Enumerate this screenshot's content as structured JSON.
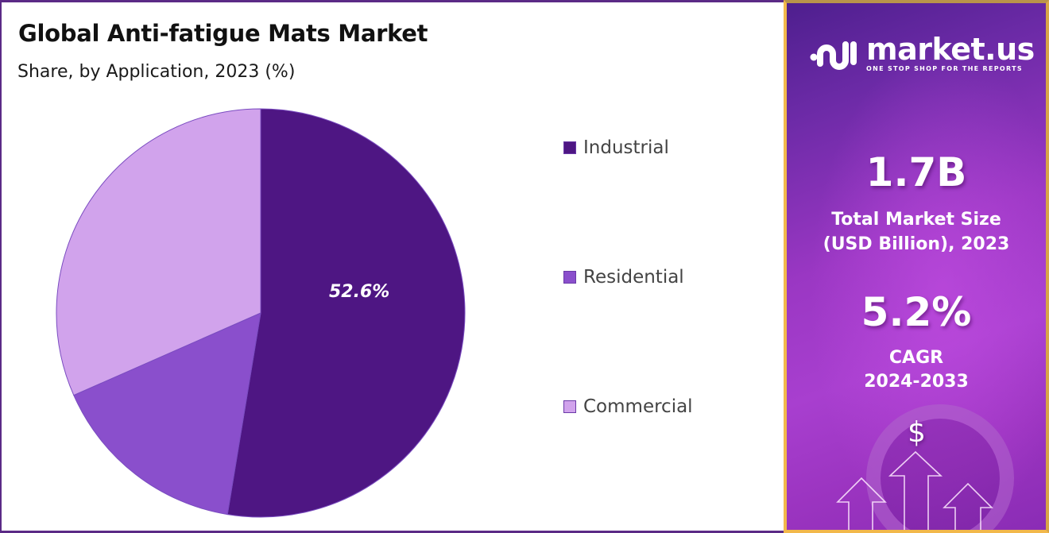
{
  "header": {
    "title": "Global Anti-fatigue Mats Market",
    "subtitle": "Share, by Application, 2023 (%)"
  },
  "legend": {
    "items": [
      {
        "label": "Industrial",
        "color": "#4e1683"
      },
      {
        "label": "Residential",
        "color": "#8a4fcc"
      },
      {
        "label": "Commercial",
        "color": "#d1a3ec"
      }
    ]
  },
  "pie_label": "52.6%",
  "sidebar": {
    "brand": "market.us",
    "tagline": "ONE STOP SHOP FOR THE REPORTS",
    "market_size_value": "1.7B",
    "market_size_label_line1": "Total Market Size",
    "market_size_label_line2": "(USD Billion), 2023",
    "cagr_value": "5.2%",
    "cagr_label_line1": "CAGR",
    "cagr_label_line2": "2024-2033",
    "dollar_symbol": "$",
    "accent_border": "#f2b84b",
    "gradient_start": "#4e1f8e",
    "gradient_end": "#a83fcf"
  },
  "chart_data": {
    "type": "pie",
    "title": "Global Anti-fatigue Mats Market",
    "subtitle": "Share, by Application, 2023 (%)",
    "categories": [
      "Industrial",
      "Residential",
      "Commercial"
    ],
    "values": [
      52.6,
      15.8,
      31.6
    ],
    "colors": [
      "#4e1683",
      "#8a4fcc",
      "#d1a3ec"
    ],
    "data_labels": [
      "52.6%",
      "",
      ""
    ],
    "start_angle": "12 o'clock, clockwise",
    "legend_position": "right",
    "annotations": {
      "market_size_2023": "1.7B USD",
      "cagr_2024_2033": "5.2%"
    }
  }
}
